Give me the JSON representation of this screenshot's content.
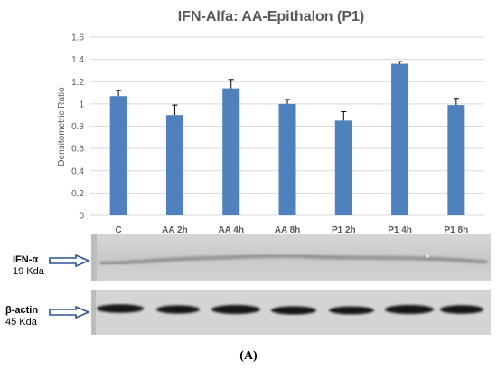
{
  "chart_data": {
    "type": "bar",
    "title": "IFN-Alfa: AA-Epithalon (P1)",
    "ylabel": "Densitometric Ratio",
    "xlabel": "",
    "ylim": [
      0,
      1.6
    ],
    "yticks": [
      0,
      0.2,
      0.4,
      0.6,
      0.8,
      1,
      1.2,
      1.4,
      1.6
    ],
    "ytick_labels": [
      "0",
      "0.2",
      "0.4",
      "0.6",
      "0.8",
      "1",
      "1.2",
      "1.4",
      "1.6"
    ],
    "grid": true,
    "categories": [
      "C",
      "AA 2h",
      "AA 4h",
      "AA 8h",
      "P1 2h",
      "P1 4h",
      "P1 8h"
    ],
    "values": [
      1.07,
      0.9,
      1.14,
      1.0,
      0.85,
      1.36,
      0.99
    ],
    "errors": [
      0.05,
      0.09,
      0.08,
      0.04,
      0.08,
      0.02,
      0.06
    ],
    "bar_color": "#4f81bd"
  },
  "blots": [
    {
      "name": "IFN-α",
      "size": "19 Kda"
    },
    {
      "name": "β-actin",
      "size": "45 Kda"
    }
  ],
  "panel_label": "(A)",
  "colors": {
    "arrow": "#2e5597",
    "grid": "#d9d9d9",
    "axis_text": "#595959"
  }
}
